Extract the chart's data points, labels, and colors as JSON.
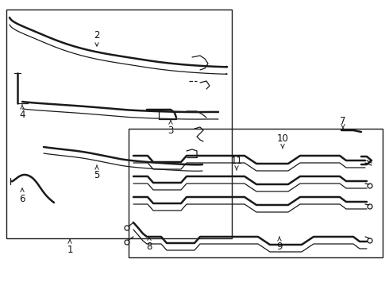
{
  "bg_color": "#ffffff",
  "line_color": "#1a1a1a",
  "border_color": "#1a1a1a",
  "lw_thick": 1.8,
  "lw_thin": 0.9,
  "lw_border": 1.0
}
